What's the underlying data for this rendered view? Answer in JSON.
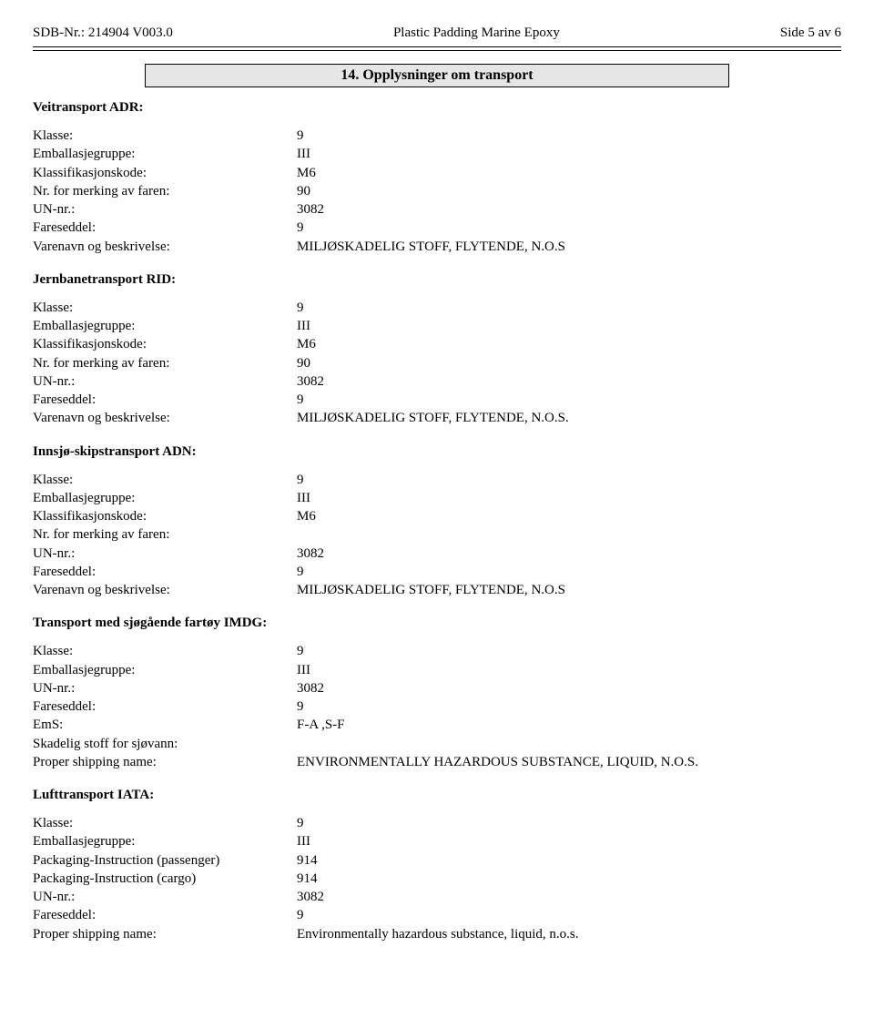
{
  "header": {
    "left": "SDB-Nr.: 214904   V003.0",
    "center": "Plastic Padding Marine Epoxy",
    "right": "Side 5 av 6"
  },
  "section_title": "14. Opplysninger om transport",
  "blocks": [
    {
      "heading": "Veitransport ADR:",
      "rows": [
        {
          "label": "Klasse:",
          "value": "9"
        },
        {
          "label": "Emballasjegruppe:",
          "value": "III"
        },
        {
          "label": "Klassifikasjonskode:",
          "value": "M6"
        },
        {
          "label": "Nr. for merking av faren:",
          "value": "90"
        },
        {
          "label": "UN-nr.:",
          "value": "3082"
        },
        {
          "label": "Fareseddel:",
          "value": "9"
        },
        {
          "label": "Varenavn og beskrivelse:",
          "value": "MILJØSKADELIG STOFF, FLYTENDE, N.O.S"
        }
      ]
    },
    {
      "heading": "Jernbanetransport RID:",
      "rows": [
        {
          "label": "Klasse:",
          "value": "9"
        },
        {
          "label": "Emballasjegruppe:",
          "value": "III"
        },
        {
          "label": "Klassifikasjonskode:",
          "value": "M6"
        },
        {
          "label": "Nr. for merking av faren:",
          "value": "90"
        },
        {
          "label": "UN-nr.:",
          "value": "3082"
        },
        {
          "label": "Fareseddel:",
          "value": "9"
        },
        {
          "label": "Varenavn og beskrivelse:",
          "value": "MILJØSKADELIG STOFF, FLYTENDE, N.O.S."
        }
      ]
    },
    {
      "heading": "Innsjø-skipstransport ADN:",
      "rows": [
        {
          "label": "Klasse:",
          "value": "9"
        },
        {
          "label": "Emballasjegruppe:",
          "value": "III"
        },
        {
          "label": "Klassifikasjonskode:",
          "value": "M6"
        },
        {
          "label": "Nr. for merking av faren:",
          "value": ""
        },
        {
          "label": "UN-nr.:",
          "value": "3082"
        },
        {
          "label": "Fareseddel:",
          "value": "9"
        },
        {
          "label": "Varenavn og beskrivelse:",
          "value": "MILJØSKADELIG STOFF, FLYTENDE, N.O.S"
        }
      ]
    },
    {
      "heading": "Transport med sjøgående fartøy IMDG:",
      "rows": [
        {
          "label": "Klasse:",
          "value": "9"
        },
        {
          "label": "Emballasjegruppe:",
          "value": "III"
        },
        {
          "label": "UN-nr.:",
          "value": "3082"
        },
        {
          "label": "Fareseddel:",
          "value": "9"
        },
        {
          "label": "EmS:",
          "value": "F-A ,S-F"
        },
        {
          "label": "Skadelig stoff for sjøvann:",
          "value": ""
        },
        {
          "label": "Proper shipping name:",
          "value": "ENVIRONMENTALLY HAZARDOUS SUBSTANCE, LIQUID, N.O.S."
        }
      ]
    },
    {
      "heading": "Lufttransport IATA:",
      "rows": [
        {
          "label": "Klasse:",
          "value": "9"
        },
        {
          "label": "Emballasjegruppe:",
          "value": "III"
        },
        {
          "label": "Packaging-Instruction (passenger)",
          "value": "914"
        },
        {
          "label": "Packaging-Instruction (cargo)",
          "value": "914"
        },
        {
          "label": "UN-nr.:",
          "value": "3082"
        },
        {
          "label": "Fareseddel:",
          "value": "9"
        },
        {
          "label": "Proper shipping name:",
          "value": "Environmentally hazardous substance, liquid, n.o.s."
        }
      ]
    }
  ]
}
